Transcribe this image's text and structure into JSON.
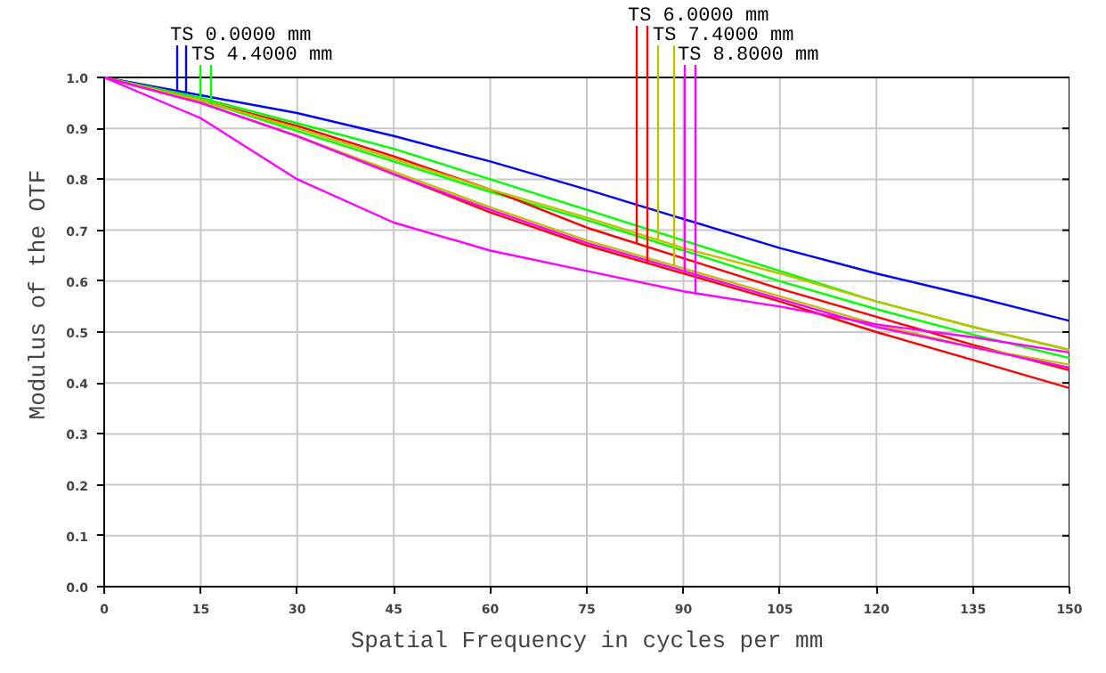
{
  "chart_data": {
    "type": "line",
    "xlabel": "Spatial Frequency in cycles per mm",
    "ylabel": "Modulus of the OTF",
    "x": [
      0,
      15,
      30,
      45,
      60,
      75,
      90,
      105,
      120,
      135,
      150
    ],
    "xlim": [
      0,
      150
    ],
    "xticks": [
      0,
      15,
      30,
      45,
      60,
      75,
      90,
      105,
      120,
      135,
      150
    ],
    "ylim": [
      0,
      1.0
    ],
    "yticks": [
      {
        "value": 0,
        "label": "0.0"
      },
      0.1,
      0.2,
      0.3,
      0.4,
      0.5,
      0.6,
      0.7,
      0.8,
      0.9,
      {
        "value": 1.0,
        "label": "1.0"
      }
    ],
    "grid": true,
    "legend": "top",
    "line_style": "solid",
    "marker": "none",
    "series": [
      {
        "name": "TS 0.0000 mm",
        "color": "#0000ff",
        "values": [
          1.0,
          0.965,
          0.93,
          0.885,
          0.835,
          0.78,
          0.722,
          0.665,
          0.615,
          0.57,
          0.522
        ]
      },
      {
        "name": "TS 4.4000 mm",
        "color": "#00ff00",
        "values": [
          1.0,
          0.96,
          0.91,
          0.86,
          0.8,
          0.74,
          0.68,
          0.62,
          0.56,
          0.51,
          0.465
        ]
      },
      {
        "color": "#00ff00",
        "values": [
          1.0,
          0.955,
          0.895,
          0.835,
          0.775,
          0.72,
          0.66,
          0.6,
          0.545,
          0.495,
          0.449
        ]
      },
      {
        "name": "TS 6.0000 mm",
        "color": "#ff0000",
        "values": [
          1.0,
          0.955,
          0.905,
          0.845,
          0.78,
          0.705,
          0.645,
          0.585,
          0.53,
          0.475,
          0.425
        ]
      },
      {
        "color": "#ff0000",
        "values": [
          1.0,
          0.95,
          0.885,
          0.81,
          0.735,
          0.67,
          0.615,
          0.56,
          0.5,
          0.445,
          0.39
        ]
      },
      {
        "name": "TS 7.4000 mm",
        "color": "#c0c000",
        "values": [
          1.0,
          0.955,
          0.9,
          0.84,
          0.78,
          0.725,
          0.665,
          0.615,
          0.56,
          0.51,
          0.465
        ]
      },
      {
        "color": "#c0c000",
        "values": [
          1.0,
          0.95,
          0.885,
          0.815,
          0.745,
          0.68,
          0.625,
          0.57,
          0.515,
          0.47,
          0.436
        ]
      },
      {
        "name": "TS 8.8000 mm",
        "color": "#ff00ff",
        "values": [
          1.0,
          0.95,
          0.885,
          0.81,
          0.74,
          0.675,
          0.62,
          0.565,
          0.51,
          0.47,
          0.43
        ]
      },
      {
        "color": "#ff00ff",
        "values": [
          1.0,
          0.92,
          0.8,
          0.715,
          0.66,
          0.62,
          0.58,
          0.55,
          0.515,
          0.49,
          0.46
        ]
      }
    ]
  }
}
